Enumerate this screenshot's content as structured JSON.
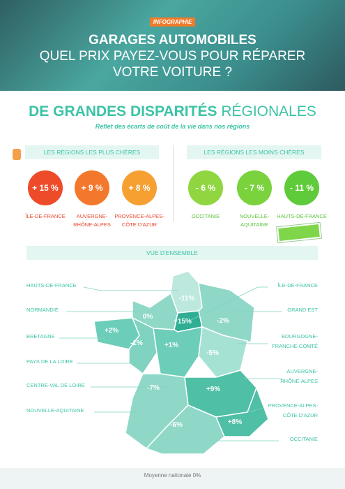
{
  "header": {
    "tag": "INFOGRAPHIE",
    "title_lines": [
      "GARAGES AUTOMOBILES",
      "QUEL PRIX PAYEZ-VOUS POUR RÉPARER",
      "VOTRE VOITURE ?"
    ]
  },
  "section": {
    "title_bold": "DE GRANDES DISPARITÉS",
    "title_light": "RÉGIONALES",
    "subtitle": "Reflet des écarts de coût de la vie dans nos régions"
  },
  "expensive": {
    "heading": "LES RÉGIONS LES PLUS CHÈRES",
    "items": [
      {
        "value": "+ 15 %",
        "label": [
          "ÎLE-DE-FRANCE"
        ]
      },
      {
        "value": "+ 9 %",
        "label": [
          "AUVERGNE-",
          "RHÔNE-ALPES"
        ]
      },
      {
        "value": "+ 8 %",
        "label": [
          "PROVENCE-ALPES-",
          "CÔTE D'AZUR"
        ]
      }
    ]
  },
  "cheap": {
    "heading": "LES RÉGIONS LES MOINS CHÈRES",
    "items": [
      {
        "value": "- 6 %",
        "label": [
          "OCCITANIE"
        ]
      },
      {
        "value": "- 7 %",
        "label": [
          "NOUVELLE-",
          "AQUITAINE"
        ]
      },
      {
        "value": "- 11 %",
        "label": [
          "HAUTS-DE-FRANCE"
        ]
      }
    ]
  },
  "overview": {
    "heading": "VUE D'ENSEMBLE",
    "left_labels": [
      [
        "HAUTS-DE-FRANCE"
      ],
      [
        "NORMANDIE"
      ],
      [
        "BRETAGNE"
      ],
      [
        "PAYS DE LA LOIRE"
      ],
      [
        "CENTRE-VAL DE LOIRE"
      ],
      [
        "NOUVELLE-AQUITAINE"
      ]
    ],
    "right_labels": [
      [
        "ÎLE-DE-FRANCE"
      ],
      [
        "GRAND EST"
      ],
      [
        "BOURGOGNE-",
        "FRANCHE-COMTÉ"
      ],
      [
        "AUVERGNE-",
        "RHÔNE-ALPES"
      ],
      [
        "PROVENCE-ALPES-",
        "CÔTE D'AZUR"
      ],
      [
        "OCCITANIE"
      ]
    ],
    "map_values": [
      "-11%",
      "0%",
      "+15%",
      "-2%",
      "+2%",
      "-1%",
      "+1%",
      "-5%",
      "-7%",
      "+9%",
      "-6%",
      "+8%"
    ],
    "footer": "Moyenne nationale 0%"
  }
}
